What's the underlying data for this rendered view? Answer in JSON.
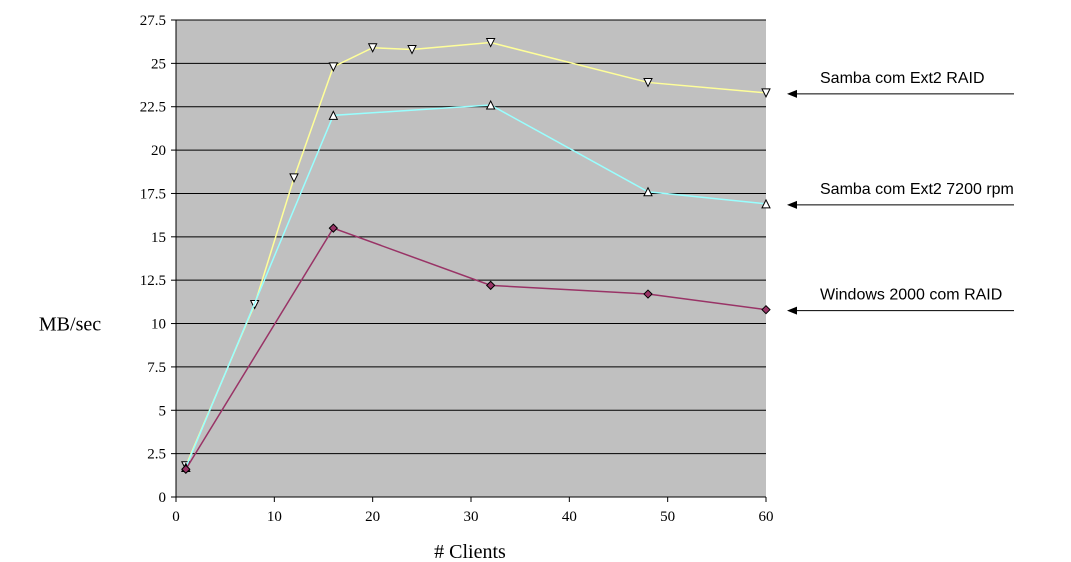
{
  "chart_data": {
    "type": "line",
    "title": "",
    "xlabel": "# Clients",
    "ylabel": "MB/sec",
    "xlim": [
      0,
      60
    ],
    "ylim": [
      0,
      27.5
    ],
    "xticks": [
      "0",
      "10",
      "20",
      "30",
      "40",
      "50",
      "60"
    ],
    "yticks": [
      "0",
      "2.5",
      "5",
      "7.5",
      "10",
      "12.5",
      "15",
      "17.5",
      "20",
      "22.5",
      "25",
      "27.5"
    ],
    "grid": true,
    "background": "#c0c0c0",
    "legend_placement": "right, with arrows pointing to line ends",
    "series": [
      {
        "name": "Samba com Ext2 RAID",
        "color": "#ffff99",
        "marker": "triangle-down",
        "x": [
          1,
          8,
          12,
          16,
          20,
          24,
          32,
          48,
          60
        ],
        "y": [
          1.8,
          11.1,
          18.4,
          24.8,
          25.9,
          25.8,
          26.2,
          23.9,
          23.3
        ]
      },
      {
        "name": "Samba com Ext2 7200 rpm",
        "color": "#99ffff",
        "marker": "triangle-up",
        "x": [
          1,
          16,
          32,
          48,
          60
        ],
        "y": [
          1.7,
          22.0,
          22.6,
          17.6,
          16.9
        ]
      },
      {
        "name": "Windows 2000 com RAID",
        "color": "#993366",
        "marker": "diamond",
        "x": [
          1,
          16,
          32,
          48,
          60
        ],
        "y": [
          1.6,
          15.5,
          12.2,
          11.7,
          10.8
        ]
      }
    ]
  }
}
